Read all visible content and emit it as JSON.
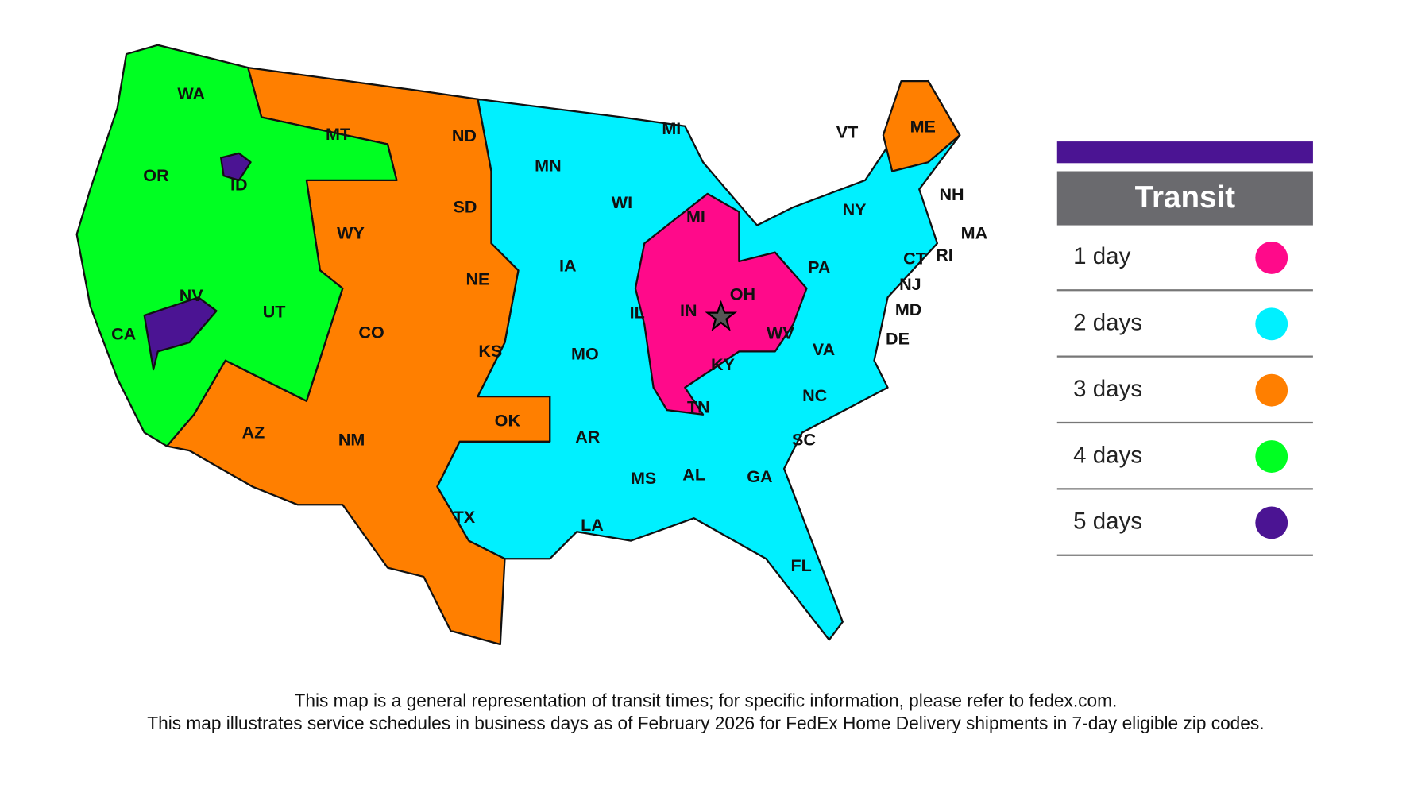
{
  "map": {
    "state_labels": [
      "WA",
      "OR",
      "CA",
      "ID",
      "NV",
      "UT",
      "AZ",
      "MT",
      "WY",
      "CO",
      "NM",
      "ND",
      "SD",
      "NE",
      "KS",
      "OK",
      "TX",
      "MN",
      "IA",
      "MO",
      "AR",
      "LA",
      "WI",
      "IL",
      "MS",
      "MI",
      "MI",
      "IN",
      "TN",
      "AL",
      "KY",
      "OH",
      "GA",
      "WV",
      "FL",
      "VA",
      "NC",
      "SC",
      "PA",
      "NY",
      "VT",
      "ME",
      "NH",
      "MA",
      "RI",
      "CT",
      "NJ",
      "MD",
      "DE"
    ]
  },
  "legend": {
    "title": "Transit",
    "items": [
      {
        "label": "1 day",
        "color": "#ff0a8a"
      },
      {
        "label": "2 days",
        "color": "#00f0ff"
      },
      {
        "label": "3 days",
        "color": "#ff7f00"
      },
      {
        "label": "4 days",
        "color": "#00ff22"
      },
      {
        "label": "5 days",
        "color": "#4b1493"
      }
    ]
  },
  "footnote": [
    "This map is a general representation of transit times; for specific information, please refer to fedex.com.",
    "This map illustrates service schedules in business days as of February 2026 for FedEx Home Delivery shipments in 7-day eligible zip codes."
  ]
}
